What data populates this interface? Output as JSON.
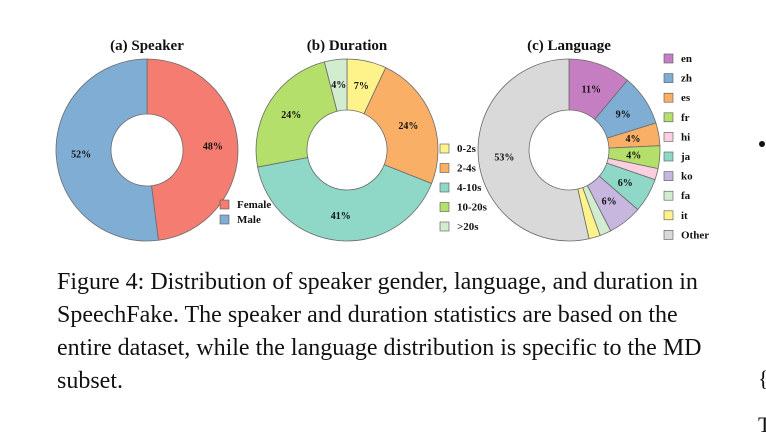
{
  "chart_data": [
    {
      "type": "pie",
      "title": "(a) Speaker",
      "donut": true,
      "categories": [
        "Female",
        "Male"
      ],
      "values": [
        48,
        52
      ],
      "labels": [
        "48%",
        "52%"
      ],
      "colors": [
        "#f47c70",
        "#7fadd4"
      ],
      "legend": "bottom-right"
    },
    {
      "type": "pie",
      "title": "(b) Duration",
      "donut": true,
      "categories": [
        "0-2s",
        "2-4s",
        "4-10s",
        "10-20s",
        ">20s"
      ],
      "values": [
        7,
        24,
        41,
        24,
        4
      ],
      "labels": [
        "7%",
        "24%",
        "41%",
        "24%",
        "4%"
      ],
      "colors": [
        "#fef28a",
        "#f9b066",
        "#8fd7c7",
        "#b4df6a",
        "#d2ecd0"
      ],
      "legend": "right"
    },
    {
      "type": "pie",
      "title": "(c) Language",
      "donut": true,
      "categories": [
        "en",
        "zh",
        "es",
        "fr",
        "hi",
        "ja",
        "ko",
        "fa",
        "it",
        "Other"
      ],
      "values": [
        11,
        9,
        4,
        4,
        2,
        6,
        6,
        2,
        2,
        53
      ],
      "labels": [
        "11%",
        "9%",
        "4%",
        "4%",
        "",
        "6%",
        "6%",
        "",
        "",
        "53%"
      ],
      "colors": [
        "#c67ec2",
        "#7fadd4",
        "#f9b066",
        "#b4df6a",
        "#fbcfdf",
        "#8fd7c7",
        "#c7b7df",
        "#d2ecd0",
        "#fef28a",
        "#d9d9d9"
      ],
      "legend": "right"
    }
  ],
  "caption": "Figure 4: Distribution of speaker gender, language, and duration in SpeechFake. The speaker and duration statistics are based on the entire dataset, while the language distribution is specific to the MD subset.",
  "edge_text": [
    "{",
    "T"
  ]
}
